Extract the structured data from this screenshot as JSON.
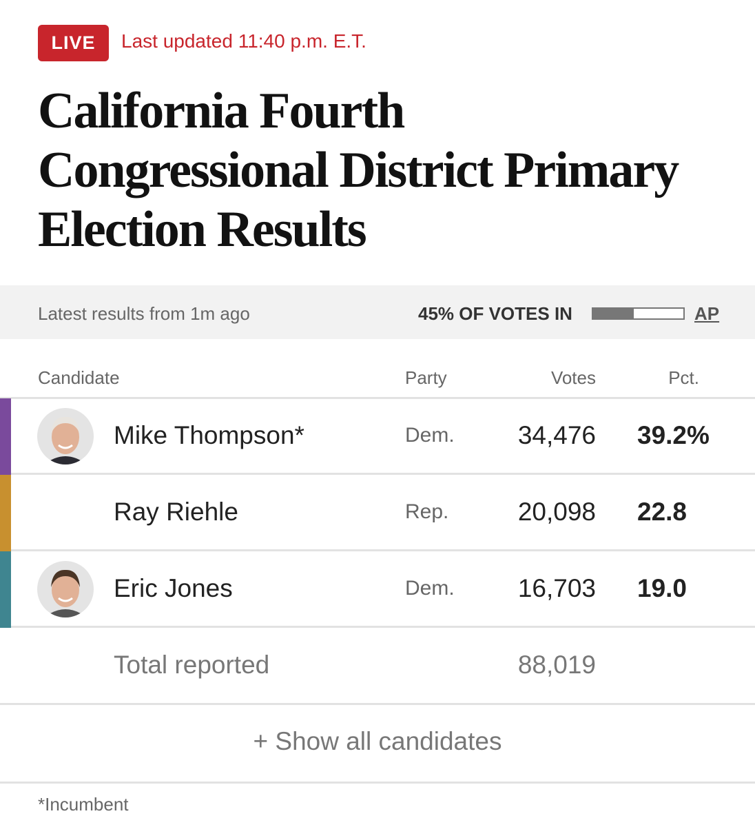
{
  "header": {
    "live": "LIVE",
    "updated": "Last updated 11:40 p.m. E.T.",
    "title": [
      "California Fourth",
      "Congressional District Primary",
      "Election Results"
    ]
  },
  "status": {
    "latest": "Latest results from 1m ago",
    "reporting_label": "45% OF VOTES IN",
    "reporting_pct": 45,
    "source": "AP"
  },
  "table": {
    "columns": [
      "Candidate",
      "Party",
      "Votes",
      "Pct."
    ],
    "rows": [
      {
        "name": "Mike Thompson*",
        "party": "Dem.",
        "votes": "34,476",
        "pct": "39.2%",
        "color": "#7a4a9c",
        "photo": true
      },
      {
        "name": "Ray Riehle",
        "party": "Rep.",
        "votes": "20,098",
        "pct": "22.8",
        "color": "#c8902f",
        "photo": false
      },
      {
        "name": "Eric Jones",
        "party": "Dem.",
        "votes": "16,703",
        "pct": "19.0",
        "color": "#3f8590",
        "photo": true
      }
    ],
    "total_label": "Total reported",
    "total_votes": "88,019"
  },
  "show_all": "+ Show all candidates",
  "footnote": "*Incumbent"
}
